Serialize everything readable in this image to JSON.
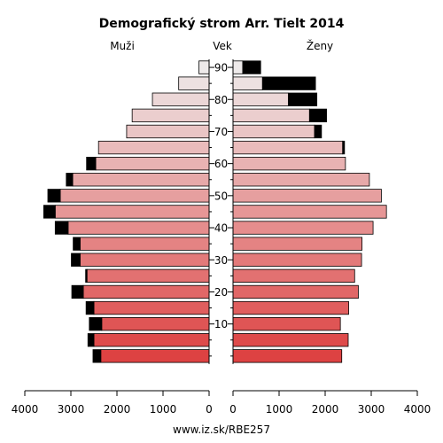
{
  "chart_data": {
    "type": "bar",
    "subtype": "population-pyramid",
    "title": "Demografický strom Arr. Tielt 2014",
    "left_label": "Muži",
    "center_label": "Vek",
    "right_label": "Ženy",
    "footer": "www.iz.sk/RBE257",
    "age_ticks": [
      "10",
      "20",
      "30",
      "40",
      "50",
      "60",
      "70",
      "80",
      "90"
    ],
    "x_ticks_left": [
      "4000",
      "3000",
      "2000",
      "1000",
      "0"
    ],
    "x_ticks_right": [
      "0",
      "1000",
      "2000",
      "3000",
      "4000"
    ],
    "xlim": [
      0,
      4000
    ],
    "age_groups": [
      "0-4",
      "5-9",
      "10-14",
      "15-19",
      "20-24",
      "25-29",
      "30-34",
      "35-39",
      "40-44",
      "45-49",
      "50-54",
      "55-59",
      "60-64",
      "65-69",
      "70-74",
      "75-79",
      "80-84",
      "85-89",
      "90-94"
    ],
    "series": [
      {
        "name": "Muži",
        "values": [
          2350,
          2500,
          2330,
          2500,
          2730,
          2650,
          2800,
          2800,
          3060,
          3340,
          3230,
          2960,
          2460,
          2400,
          1790,
          1670,
          1230,
          660,
          220
        ],
        "excess": [
          170,
          130,
          270,
          170,
          250,
          30,
          190,
          150,
          280,
          250,
          270,
          140,
          200,
          0,
          0,
          0,
          0,
          0,
          0
        ]
      },
      {
        "name": "Ženy",
        "values": [
          2360,
          2500,
          2330,
          2510,
          2720,
          2640,
          2790,
          2800,
          3040,
          3330,
          3220,
          2960,
          2440,
          2380,
          1770,
          1660,
          1200,
          640,
          210
        ],
        "excess": [
          0,
          0,
          0,
          0,
          0,
          0,
          0,
          0,
          0,
          0,
          0,
          0,
          0,
          40,
          150,
          370,
          620,
          1150,
          390
        ]
      }
    ],
    "colors": {
      "young": "#dd4242",
      "old": "#eeeaea",
      "excess": "#000000"
    }
  }
}
